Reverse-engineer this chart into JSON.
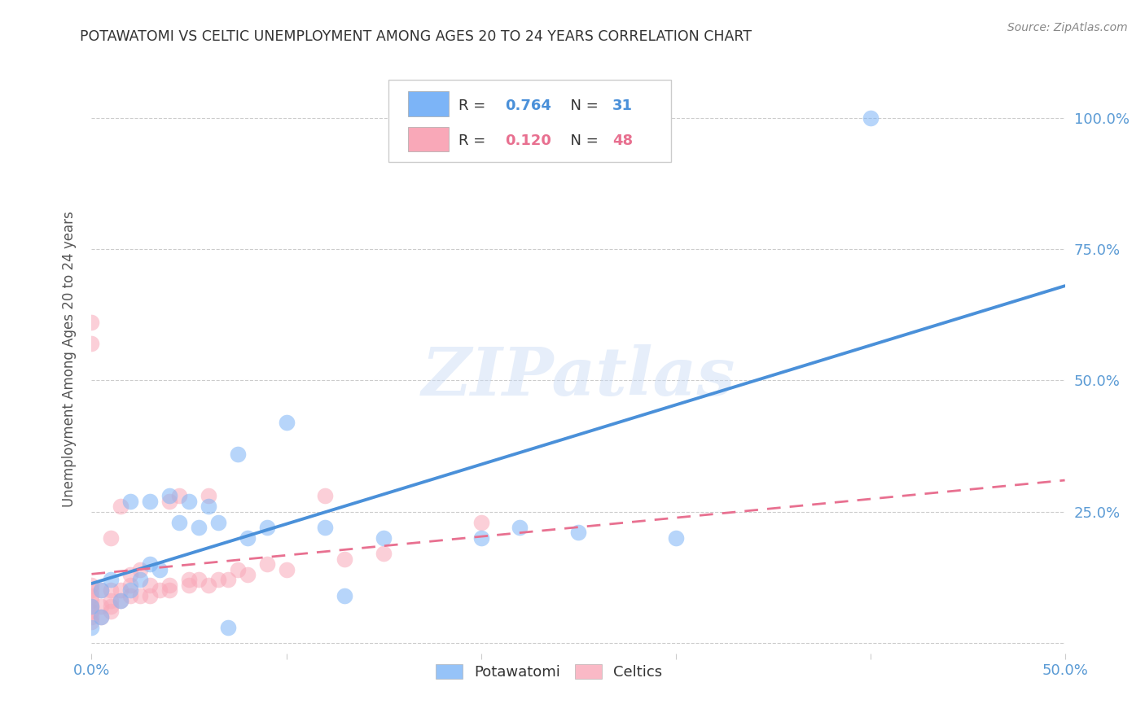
{
  "title": "POTAWATOMI VS CELTIC UNEMPLOYMENT AMONG AGES 20 TO 24 YEARS CORRELATION CHART",
  "source": "Source: ZipAtlas.com",
  "ylabel": "Unemployment Among Ages 20 to 24 years",
  "xlim": [
    0.0,
    0.5
  ],
  "ylim": [
    -0.02,
    1.1
  ],
  "xticks": [
    0.0,
    0.1,
    0.2,
    0.3,
    0.4,
    0.5
  ],
  "xticklabels_show": [
    "0.0%",
    "",
    "",
    "",
    "",
    "50.0%"
  ],
  "yticks_right": [
    0.0,
    0.25,
    0.5,
    0.75,
    1.0
  ],
  "yticklabels_right": [
    "",
    "25.0%",
    "50.0%",
    "75.0%",
    "100.0%"
  ],
  "watermark": "ZIPatlas",
  "potawatomi_color": "#7cb4f7",
  "celtics_color": "#f9a8b8",
  "potawatomi_line_color": "#4a90d9",
  "celtics_line_color": "#e87090",
  "background_color": "#ffffff",
  "grid_color": "#cccccc",
  "title_color": "#333333",
  "axis_label_color": "#555555",
  "tick_color": "#5b9bd5",
  "legend_R1": "0.764",
  "legend_N1": "31",
  "legend_R2": "0.120",
  "legend_N2": "48",
  "potawatomi_x": [
    0.0,
    0.0,
    0.005,
    0.005,
    0.01,
    0.015,
    0.02,
    0.02,
    0.025,
    0.03,
    0.03,
    0.035,
    0.04,
    0.045,
    0.05,
    0.055,
    0.06,
    0.065,
    0.07,
    0.075,
    0.08,
    0.09,
    0.1,
    0.12,
    0.13,
    0.15,
    0.2,
    0.22,
    0.25,
    0.3,
    0.4
  ],
  "potawatomi_y": [
    0.03,
    0.07,
    0.05,
    0.1,
    0.12,
    0.08,
    0.1,
    0.27,
    0.12,
    0.15,
    0.27,
    0.14,
    0.28,
    0.23,
    0.27,
    0.22,
    0.26,
    0.23,
    0.03,
    0.36,
    0.2,
    0.22,
    0.42,
    0.22,
    0.09,
    0.2,
    0.2,
    0.22,
    0.21,
    0.2,
    1.0
  ],
  "celtics_x": [
    0.0,
    0.0,
    0.0,
    0.0,
    0.0,
    0.0,
    0.0,
    0.0,
    0.0,
    0.0,
    0.005,
    0.005,
    0.005,
    0.01,
    0.01,
    0.01,
    0.01,
    0.01,
    0.015,
    0.015,
    0.015,
    0.02,
    0.02,
    0.02,
    0.025,
    0.025,
    0.03,
    0.03,
    0.035,
    0.04,
    0.04,
    0.04,
    0.045,
    0.05,
    0.05,
    0.055,
    0.06,
    0.06,
    0.065,
    0.07,
    0.075,
    0.08,
    0.09,
    0.1,
    0.12,
    0.13,
    0.15,
    0.2
  ],
  "celtics_y": [
    0.04,
    0.05,
    0.06,
    0.07,
    0.08,
    0.09,
    0.1,
    0.11,
    0.57,
    0.61,
    0.05,
    0.07,
    0.1,
    0.06,
    0.07,
    0.08,
    0.1,
    0.2,
    0.08,
    0.1,
    0.26,
    0.09,
    0.11,
    0.13,
    0.09,
    0.14,
    0.09,
    0.11,
    0.1,
    0.1,
    0.11,
    0.27,
    0.28,
    0.11,
    0.12,
    0.12,
    0.11,
    0.28,
    0.12,
    0.12,
    0.14,
    0.13,
    0.15,
    0.14,
    0.28,
    0.16,
    0.17,
    0.23
  ]
}
